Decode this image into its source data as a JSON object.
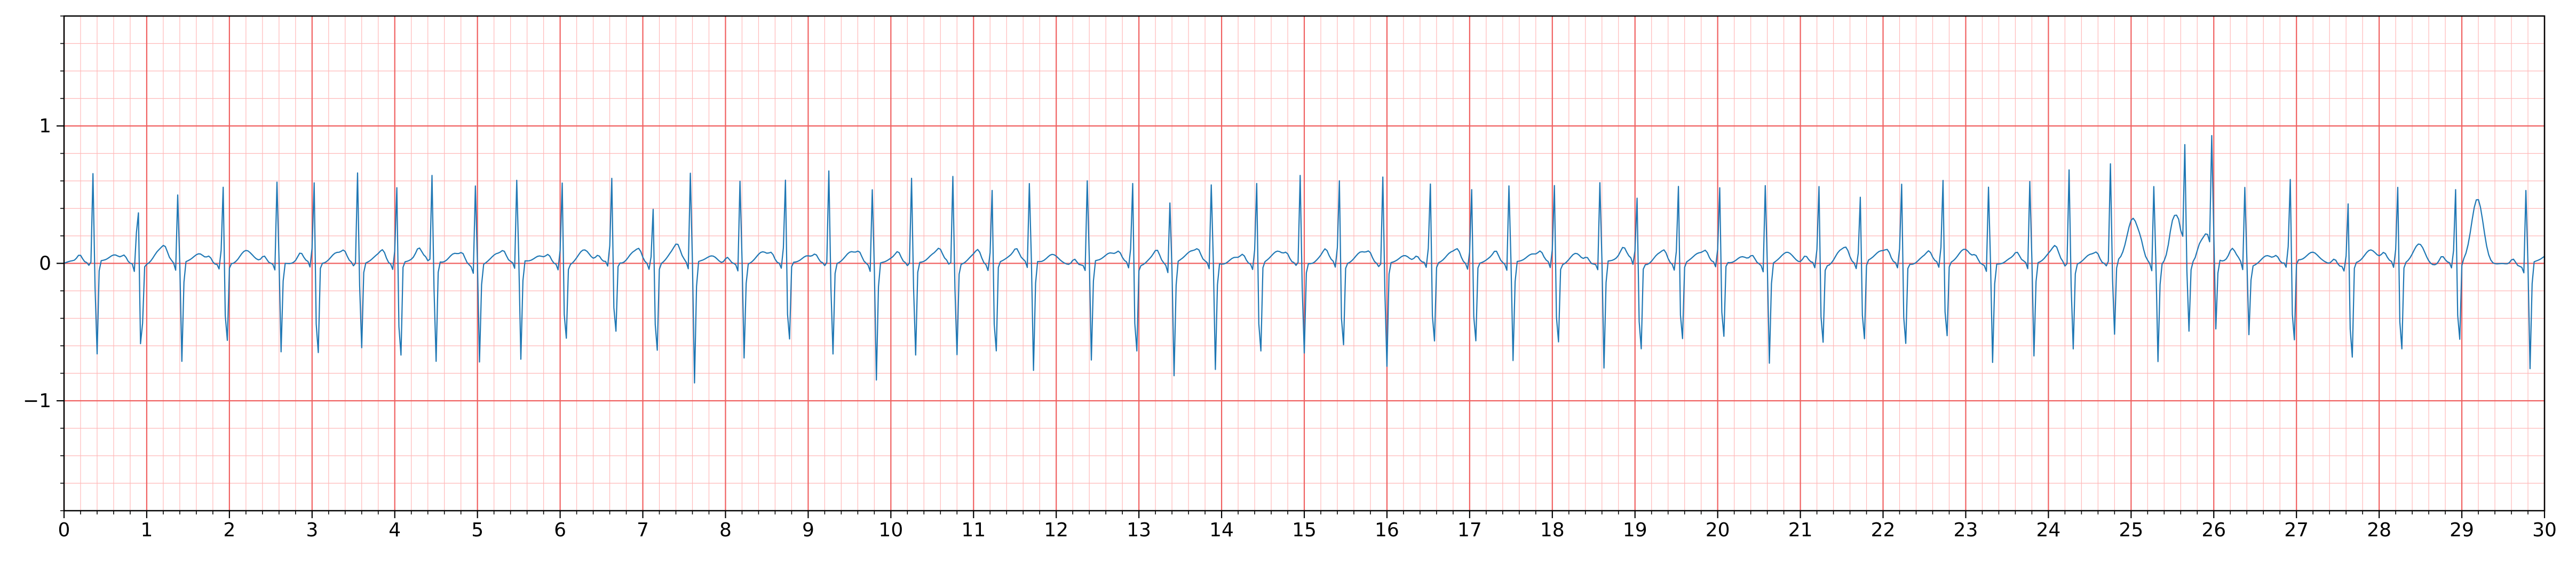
{
  "chart_data": {
    "type": "line",
    "title": "",
    "xlabel": "",
    "ylabel": "",
    "xlim": [
      0,
      30
    ],
    "ylim": [
      -1.8,
      1.8
    ],
    "x_ticks": [
      0,
      1,
      2,
      3,
      4,
      5,
      6,
      7,
      8,
      9,
      10,
      11,
      12,
      13,
      14,
      15,
      16,
      17,
      18,
      19,
      20,
      21,
      22,
      23,
      24,
      25,
      26,
      27,
      28,
      29,
      30
    ],
    "x_tick_labels": [
      "0",
      "1",
      "2",
      "3",
      "4",
      "5",
      "6",
      "7",
      "8",
      "9",
      "10",
      "11",
      "12",
      "13",
      "14",
      "15",
      "16",
      "17",
      "18",
      "19",
      "20",
      "21",
      "22",
      "23",
      "24",
      "25",
      "26",
      "27",
      "28",
      "29",
      "30"
    ],
    "y_ticks": [
      -1,
      0,
      1
    ],
    "y_tick_labels": [
      "−1",
      "0",
      "1"
    ],
    "grid": {
      "major": true,
      "major_x_step": 1,
      "major_y_step": 1,
      "minor": true,
      "minor_x_step": 0.2,
      "minor_y_step": 0.2
    },
    "colors": {
      "trace": "#1f77b4",
      "grid_major": "#f06060",
      "grid_minor": "#ffb8b8",
      "background": "#ffffff",
      "axes": "#000000"
    },
    "series": [
      {
        "sample_rate_hz": 40,
        "r_peak_times": [
          0.35,
          0.89,
          1.38,
          1.92,
          2.58,
          3.02,
          3.55,
          4.02,
          4.45,
          4.98,
          5.48,
          6.02,
          6.62,
          7.12,
          7.58,
          8.18,
          8.72,
          9.25,
          9.78,
          10.25,
          10.75,
          11.22,
          11.68,
          12.38,
          12.92,
          13.38,
          13.88,
          14.42,
          14.95,
          15.42,
          15.95,
          16.52,
          17.02,
          17.48,
          18.02,
          18.58,
          19.02,
          19.52,
          20.02,
          20.58,
          21.22,
          21.72,
          22.22,
          22.72,
          23.28,
          23.78,
          24.25,
          24.75,
          25.28,
          25.65,
          25.98,
          26.38,
          26.92,
          27.62,
          28.22,
          28.92,
          29.78
        ],
        "r_peak_heights": [
          0.65,
          0.58,
          0.55,
          0.62,
          0.65,
          0.65,
          0.67,
          0.62,
          0.62,
          0.65,
          0.65,
          0.67,
          0.67,
          0.46,
          0.72,
          0.67,
          0.67,
          0.68,
          0.6,
          0.62,
          0.64,
          0.61,
          0.62,
          0.66,
          0.66,
          0.5,
          0.62,
          0.66,
          0.64,
          0.67,
          0.64,
          0.64,
          0.61,
          0.62,
          0.64,
          0.64,
          0.52,
          0.64,
          0.6,
          0.64,
          0.63,
          0.54,
          0.64,
          0.67,
          0.62,
          0.65,
          0.7,
          0.72,
          0.63,
          0.76,
          0.85,
          0.62,
          0.66,
          0.5,
          0.62,
          0.6,
          0.6
        ],
        "s_wave_depths": [
          -0.72,
          -0.75,
          -0.72,
          -0.72,
          -0.65,
          -0.84,
          -0.65,
          -0.87,
          -0.78,
          -0.7,
          -0.72,
          -0.68,
          -0.65,
          -0.8,
          -0.88,
          -0.68,
          -0.72,
          -0.7,
          -0.85,
          -0.72,
          -0.7,
          -0.82,
          -0.8,
          -0.72,
          -0.8,
          -0.82,
          -0.78,
          -0.82,
          -0.7,
          -0.76,
          -0.8,
          -0.73,
          -0.72,
          -0.72,
          -0.72,
          -0.78,
          -0.8,
          -0.7,
          -0.7,
          -0.72,
          -0.72,
          -0.72,
          -0.75,
          -0.68,
          -0.72,
          -0.68,
          -0.65,
          -0.57,
          -0.7,
          -0.55,
          -0.55,
          -0.5,
          -0.75,
          -0.88,
          -0.8,
          -0.72,
          -0.77
        ],
        "t_wave_heights": [
          0.08,
          0.08,
          0.08,
          0.08,
          0.05,
          0.06,
          0.08,
          0.06,
          0.08,
          0.06,
          0.07,
          0.08,
          0.1,
          0.08,
          0.07,
          0.06,
          0.08,
          0.06,
          0.07,
          0.06,
          0.07,
          0.06,
          0.08,
          0.07,
          0.06,
          0.08,
          0.06,
          0.07,
          0.08,
          0.06,
          0.08,
          0.06,
          0.07,
          0.06,
          0.08,
          0.06,
          0.08,
          0.06,
          0.07,
          0.06,
          0.1,
          0.08,
          0.07,
          0.08,
          0.06,
          0.07,
          0.08,
          0.32,
          0.35,
          0.2,
          0.05,
          0.06,
          0.08,
          0.1,
          0.15,
          0.45,
          0.06
        ],
        "baseline": 0.0
      }
    ]
  }
}
